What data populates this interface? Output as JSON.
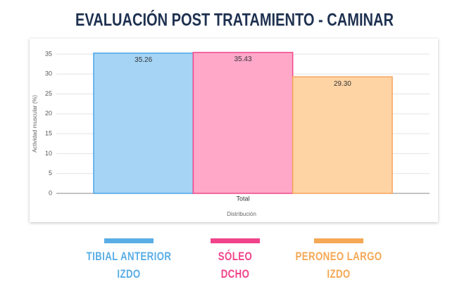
{
  "chart_data": {
    "type": "bar",
    "title": "EVALUACIÓN POST TRATAMIENTO - CAMINAR",
    "x_label": "Distribución",
    "y_label": "Actividad muscular (%)",
    "categories": [
      "Total"
    ],
    "series": [
      {
        "name": "TIBIAL ANTERIOR\nIZDO",
        "color": "#a6d4f5",
        "values": [
          35.26
        ],
        "value_labels": [
          "35.26"
        ]
      },
      {
        "name": "SÓLEO\nDCHO",
        "color": "#ffa8c8",
        "values": [
          35.43
        ],
        "value_labels": [
          "35.43"
        ]
      },
      {
        "name": "PERONEO LARGO\nIZDO",
        "color": "#ffd4a5",
        "values": [
          29.3
        ],
        "value_labels": [
          "29.30"
        ]
      }
    ],
    "ylim": [
      0,
      35
    ],
    "yticks": [
      0,
      5,
      10,
      15,
      20,
      25,
      30,
      35
    ],
    "grid": true
  }
}
